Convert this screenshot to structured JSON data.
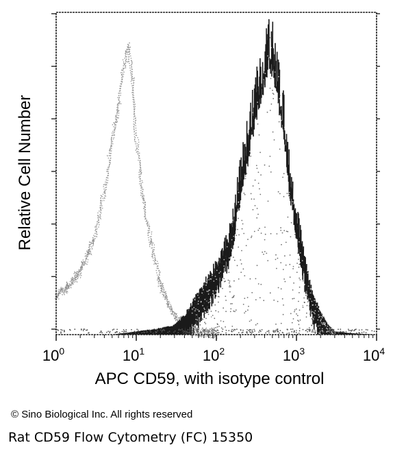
{
  "chart_data": {
    "type": "area",
    "title": "",
    "xlabel": "APC CD59, with isotype control",
    "ylabel": "Relative Cell Number",
    "x_scale": "log",
    "xlim": [
      1,
      10000
    ],
    "x_ticks": [
      {
        "base": "10",
        "exp": "0"
      },
      {
        "base": "10",
        "exp": "1"
      },
      {
        "base": "10",
        "exp": "2"
      },
      {
        "base": "10",
        "exp": "3"
      },
      {
        "base": "10",
        "exp": "4"
      }
    ],
    "ylim": [
      0,
      1
    ],
    "grid": false,
    "legend": "none",
    "series": [
      {
        "style": "light-gray dotted outline",
        "color": "#8a8a8a",
        "x": [
          1,
          1.5,
          2,
          3,
          4,
          5,
          6,
          7,
          8,
          9,
          10,
          12,
          15,
          20,
          25,
          30,
          40,
          50,
          70,
          100
        ],
        "y": [
          0.12,
          0.16,
          0.2,
          0.3,
          0.45,
          0.62,
          0.72,
          0.85,
          0.92,
          0.8,
          0.62,
          0.45,
          0.3,
          0.16,
          0.1,
          0.06,
          0.03,
          0.01,
          0.005,
          0.0
        ]
      },
      {
        "style": "dark filled noisy histogram",
        "color": "#1a1a1a",
        "x": [
          5,
          10,
          20,
          30,
          40,
          50,
          70,
          100,
          150,
          200,
          250,
          300,
          350,
          400,
          450,
          500,
          600,
          700,
          800,
          1000,
          1200,
          1500,
          2000,
          2500,
          3000,
          5000,
          10000
        ],
        "y": [
          0.0,
          0.01,
          0.02,
          0.03,
          0.06,
          0.1,
          0.16,
          0.22,
          0.33,
          0.52,
          0.65,
          0.76,
          0.82,
          0.88,
          0.95,
          0.92,
          0.82,
          0.7,
          0.55,
          0.4,
          0.28,
          0.15,
          0.07,
          0.03,
          0.01,
          0.004,
          0.0
        ]
      }
    ]
  },
  "footer": {
    "copyright": "© Sino Biological Inc. All rights reserved",
    "caption": "Rat CD59 Flow Cytometry (FC) 15350"
  }
}
